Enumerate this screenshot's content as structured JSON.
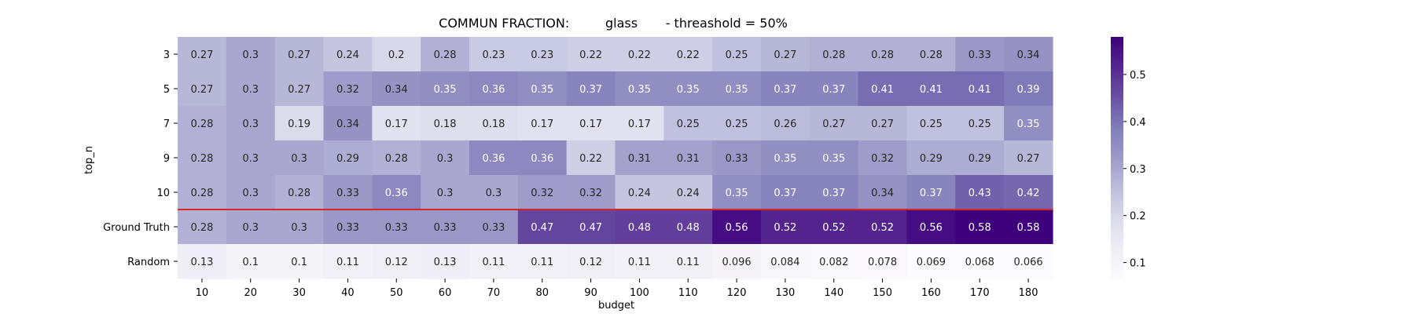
{
  "chart_data": {
    "type": "heatmap",
    "title": "COMMUN FRACTION:         glass       - threashold = 50%",
    "xlabel": "budget",
    "ylabel": "top_n",
    "x_categories": [
      "10",
      "20",
      "30",
      "40",
      "50",
      "60",
      "70",
      "80",
      "90",
      "100",
      "110",
      "120",
      "130",
      "140",
      "150",
      "160",
      "170",
      "180"
    ],
    "y_categories": [
      "3",
      "5",
      "7",
      "9",
      "10",
      "Ground Truth",
      "Random"
    ],
    "values": [
      [
        0.27,
        0.3,
        0.27,
        0.24,
        0.2,
        0.28,
        0.23,
        0.23,
        0.22,
        0.22,
        0.22,
        0.25,
        0.27,
        0.28,
        0.28,
        0.28,
        0.33,
        0.34
      ],
      [
        0.27,
        0.3,
        0.27,
        0.32,
        0.34,
        0.35,
        0.36,
        0.35,
        0.37,
        0.35,
        0.35,
        0.35,
        0.37,
        0.37,
        0.41,
        0.41,
        0.41,
        0.39
      ],
      [
        0.28,
        0.3,
        0.19,
        0.34,
        0.17,
        0.18,
        0.18,
        0.17,
        0.17,
        0.17,
        0.25,
        0.25,
        0.26,
        0.27,
        0.27,
        0.25,
        0.25,
        0.35
      ],
      [
        0.28,
        0.3,
        0.3,
        0.29,
        0.28,
        0.3,
        0.36,
        0.36,
        0.22,
        0.31,
        0.31,
        0.33,
        0.35,
        0.35,
        0.32,
        0.29,
        0.29,
        0.27
      ],
      [
        0.28,
        0.3,
        0.28,
        0.33,
        0.36,
        0.3,
        0.3,
        0.32,
        0.32,
        0.24,
        0.24,
        0.35,
        0.37,
        0.37,
        0.34,
        0.37,
        0.43,
        0.42
      ],
      [
        0.28,
        0.3,
        0.3,
        0.33,
        0.33,
        0.33,
        0.33,
        0.47,
        0.47,
        0.48,
        0.48,
        0.56,
        0.52,
        0.52,
        0.52,
        0.56,
        0.58,
        0.58
      ],
      [
        0.13,
        0.1,
        0.1,
        0.11,
        0.12,
        0.13,
        0.11,
        0.11,
        0.12,
        0.11,
        0.11,
        0.096,
        0.084,
        0.082,
        0.078,
        0.069,
        0.068,
        0.066
      ]
    ],
    "colormap": "Purples",
    "color_range": [
      0.066,
      0.58
    ],
    "colorbar_ticks": [
      0.1,
      0.2,
      0.3,
      0.4,
      0.5
    ],
    "separator_after_row": "10",
    "separator_color": "#d62728"
  }
}
